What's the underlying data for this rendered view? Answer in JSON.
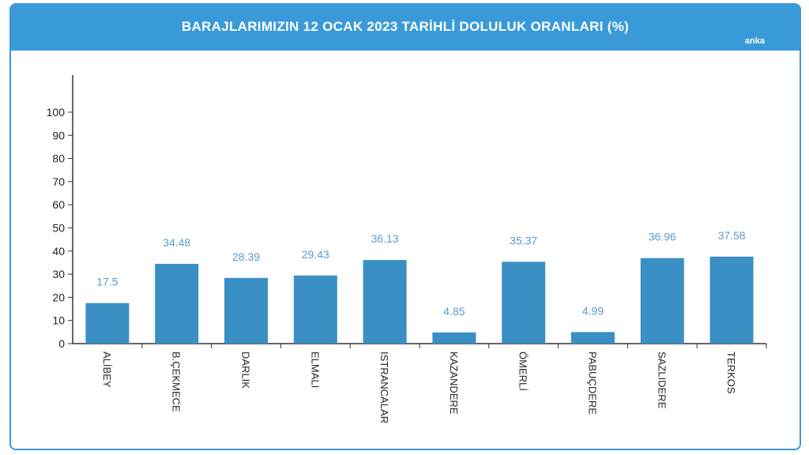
{
  "header": {
    "title": "BARAJLARIMIZIN 12 OCAK 2023 TARİHLİ DOLULUK ORANLARI (%)",
    "brand": "anka"
  },
  "colors": {
    "header": "#3a9ad9",
    "bar": "#3a8fc5",
    "value_label": "#5b9bc9",
    "axis": "#333333"
  },
  "chart_data": {
    "type": "bar",
    "title": "BARAJLARIMIZIN 12 OCAK 2023 TARİHLİ DOLULUK ORANLARI (%)",
    "xlabel": "",
    "ylabel": "",
    "ylim": [
      0,
      100
    ],
    "yticks": [
      0,
      10,
      20,
      30,
      40,
      50,
      60,
      70,
      80,
      90,
      100
    ],
    "grid": false,
    "categories": [
      "ALİBEY",
      "B.ÇEKMECE",
      "DARLIK",
      "ELMALI",
      "ISTRANCALAR",
      "KAZANDERE",
      "ÖMERLİ",
      "PABUÇDERE",
      "SAZLIDERE",
      "TERKOS"
    ],
    "values": [
      17.5,
      34.48,
      28.39,
      29.43,
      36.13,
      4.85,
      35.37,
      4.99,
      36.96,
      37.58
    ],
    "value_labels": [
      "17.5",
      "34.48",
      "28.39",
      "29.43",
      "36.13",
      "4.85",
      "35.37",
      "4.99",
      "36.96",
      "37.58"
    ]
  }
}
